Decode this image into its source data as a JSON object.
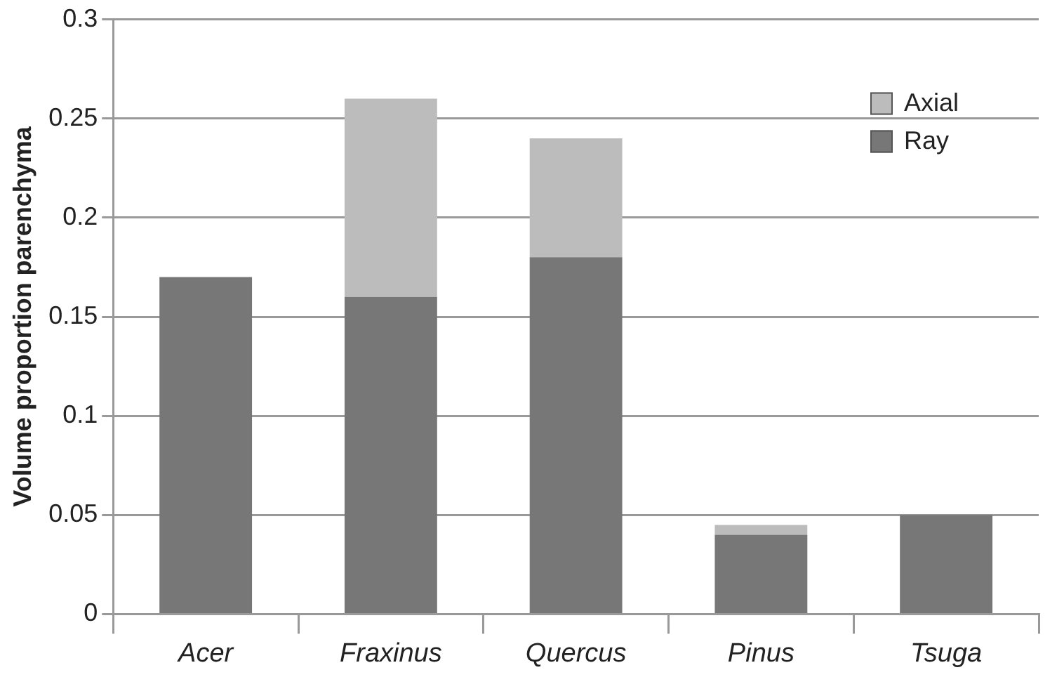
{
  "chart_data": {
    "type": "bar",
    "stacked": true,
    "ylabel": "Volume proportion parenchyma",
    "categories": [
      "Acer",
      "Fraxinus",
      "Quercus",
      "Pinus",
      "Tsuga"
    ],
    "series": [
      {
        "name": "Ray",
        "color": "#777777",
        "values": [
          0.17,
          0.16,
          0.18,
          0.04,
          0.05
        ]
      },
      {
        "name": "Axial",
        "color": "#bcbcbc",
        "values": [
          null,
          0.1,
          0.06,
          0.005,
          null
        ]
      }
    ],
    "ylim": [
      0,
      0.3
    ],
    "yticks": [
      0,
      0.05,
      0.1,
      0.15,
      0.2,
      0.25,
      0.3
    ],
    "grid": "y",
    "legend": "top right"
  }
}
